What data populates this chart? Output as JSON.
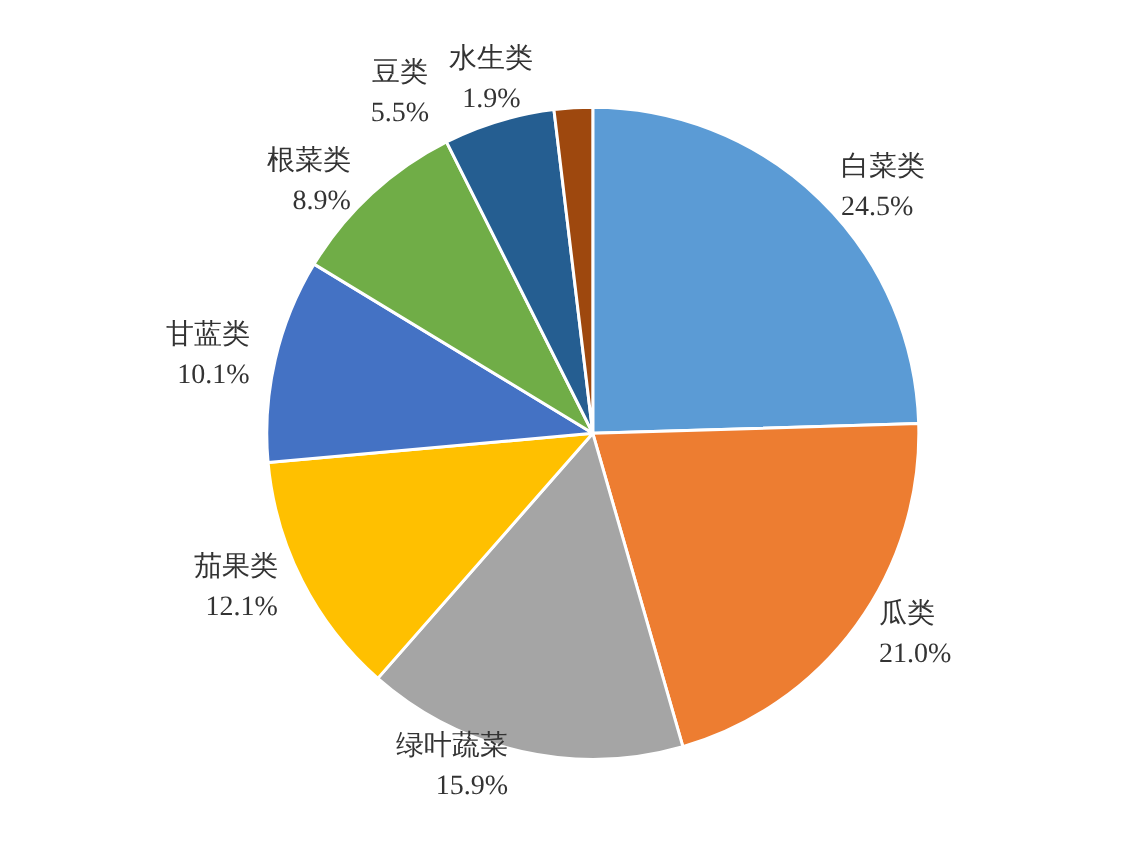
{
  "chart_data": {
    "type": "pie",
    "categories": [
      "白菜类",
      "瓜类",
      "绿叶蔬菜",
      "茄果类",
      "甘蓝类",
      "根菜类",
      "豆类",
      "水生类"
    ],
    "values": [
      24.5,
      21.0,
      15.9,
      12.1,
      10.1,
      8.9,
      5.5,
      1.9
    ],
    "value_labels": [
      "24.5%",
      "21.0%",
      "15.9%",
      "12.1%",
      "10.1%",
      "8.9%",
      "5.5%",
      "1.9%"
    ],
    "colors": [
      "#5b9bd5",
      "#ed7d31",
      "#a5a5a5",
      "#ffc000",
      "#4472c4",
      "#70ad47",
      "#255e91",
      "#9e480e"
    ],
    "legend": false
  }
}
